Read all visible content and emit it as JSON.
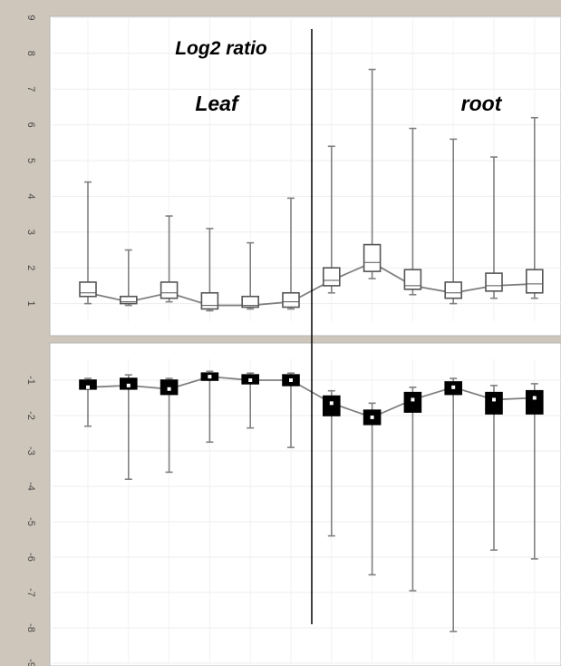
{
  "annotations": {
    "title": "Log2 ratio",
    "left_group": "Leaf",
    "right_group": "root"
  },
  "colors": {
    "background": "#cfc6bb",
    "panel": "#ffffff",
    "whisker": "#808080",
    "up_box_fill": "#ffffff",
    "down_box_fill": "#000000",
    "median_line": "#808080",
    "divider": "#000000"
  },
  "chart_data": [
    {
      "type": "box",
      "panel": "upper",
      "y_ticks": [
        "1",
        "2",
        "3",
        "4",
        "5",
        "6",
        "7",
        "8",
        "9"
      ],
      "ylim": [
        0.5,
        9
      ],
      "tick_rotation_deg": 90,
      "box_fill": "white",
      "groups": [
        "Leaf",
        "root"
      ],
      "boxes": [
        {
          "group": "Leaf",
          "min": 1.0,
          "q1": 1.2,
          "median": 1.3,
          "q3": 1.6,
          "max": 4.4
        },
        {
          "group": "Leaf",
          "min": 0.95,
          "q1": 1.0,
          "median": 1.05,
          "q3": 1.2,
          "max": 2.5
        },
        {
          "group": "Leaf",
          "min": 1.05,
          "q1": 1.15,
          "median": 1.3,
          "q3": 1.6,
          "max": 3.45
        },
        {
          "group": "Leaf",
          "min": 0.8,
          "q1": 0.85,
          "median": 0.95,
          "q3": 1.3,
          "max": 3.1
        },
        {
          "group": "Leaf",
          "min": 0.85,
          "q1": 0.9,
          "median": 0.95,
          "q3": 1.2,
          "max": 2.7
        },
        {
          "group": "Leaf",
          "min": 0.85,
          "q1": 0.9,
          "median": 1.05,
          "q3": 1.3,
          "max": 3.95
        },
        {
          "group": "root",
          "min": 1.3,
          "q1": 1.5,
          "median": 1.65,
          "q3": 2.0,
          "max": 5.4
        },
        {
          "group": "root",
          "min": 1.7,
          "q1": 1.9,
          "median": 2.15,
          "q3": 2.65,
          "max": 7.55
        },
        {
          "group": "root",
          "min": 1.25,
          "q1": 1.4,
          "median": 1.5,
          "q3": 1.95,
          "max": 5.9
        },
        {
          "group": "root",
          "min": 1.0,
          "q1": 1.15,
          "median": 1.3,
          "q3": 1.6,
          "max": 5.6
        },
        {
          "group": "root",
          "min": 1.15,
          "q1": 1.35,
          "median": 1.5,
          "q3": 1.85,
          "max": 5.1
        },
        {
          "group": "root",
          "min": 1.15,
          "q1": 1.3,
          "median": 1.55,
          "q3": 1.95,
          "max": 6.2
        }
      ]
    },
    {
      "type": "box",
      "panel": "lower",
      "y_ticks": [
        "-1",
        "-2",
        "-3",
        "-4",
        "-5",
        "-6",
        "-7",
        "-8",
        "-9"
      ],
      "ylim": [
        -9,
        -0.4
      ],
      "tick_rotation_deg": 90,
      "box_fill": "black",
      "groups": [
        "Leaf",
        "root"
      ],
      "boxes": [
        {
          "group": "Leaf",
          "min": -2.3,
          "q1": -1.25,
          "median": -1.2,
          "q3": -1.0,
          "max": -0.95
        },
        {
          "group": "Leaf",
          "min": -3.8,
          "q1": -1.25,
          "median": -1.15,
          "q3": -0.95,
          "max": -0.85
        },
        {
          "group": "Leaf",
          "min": -3.6,
          "q1": -1.4,
          "median": -1.25,
          "q3": -1.0,
          "max": -0.95
        },
        {
          "group": "Leaf",
          "min": -2.75,
          "q1": -1.0,
          "median": -0.9,
          "q3": -0.8,
          "max": -0.75
        },
        {
          "group": "Leaf",
          "min": -2.35,
          "q1": -1.1,
          "median": -1.0,
          "q3": -0.85,
          "max": -0.8
        },
        {
          "group": "Leaf",
          "min": -2.9,
          "q1": -1.15,
          "median": -1.0,
          "q3": -0.85,
          "max": -0.8
        },
        {
          "group": "root",
          "min": -5.4,
          "q1": -2.0,
          "median": -1.65,
          "q3": -1.45,
          "max": -1.3
        },
        {
          "group": "root",
          "min": -6.5,
          "q1": -2.25,
          "median": -2.05,
          "q3": -1.85,
          "max": -1.65
        },
        {
          "group": "root",
          "min": -6.95,
          "q1": -1.9,
          "median": -1.55,
          "q3": -1.35,
          "max": -1.2
        },
        {
          "group": "root",
          "min": -8.1,
          "q1": -1.4,
          "median": -1.2,
          "q3": -1.05,
          "max": -0.95
        },
        {
          "group": "root",
          "min": -5.8,
          "q1": -1.95,
          "median": -1.55,
          "q3": -1.35,
          "max": -1.15
        },
        {
          "group": "root",
          "min": -6.05,
          "q1": -1.95,
          "median": -1.5,
          "q3": -1.3,
          "max": -1.1
        }
      ]
    }
  ]
}
